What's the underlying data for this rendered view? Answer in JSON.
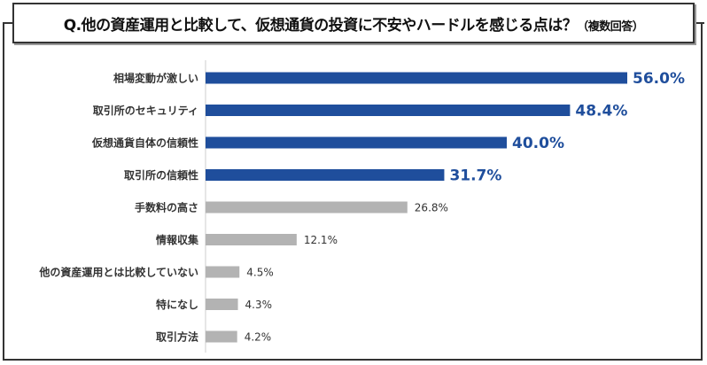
{
  "chart_data": {
    "type": "bar",
    "orientation": "horizontal",
    "title": "Q.他の資産運用と比較して、仮想通貨の投資に不安やハードルを感じる点は？",
    "title_note": "（複数回答）",
    "categories": [
      "相場変動が激しい",
      "取引所のセキュリティ",
      "仮想通貨自体の信頼性",
      "取引所の信頼性",
      "手数料の高さ",
      "情報収集",
      "他の資産運用とは比較していない",
      "特になし",
      "取引方法"
    ],
    "values": [
      56.0,
      48.4,
      40.0,
      31.7,
      26.8,
      12.1,
      4.5,
      4.3,
      4.2
    ],
    "labels": [
      "56.0%",
      "48.4%",
      "40.0%",
      "31.7%",
      "26.8%",
      "12.1%",
      "4.5%",
      "4.3%",
      "4.2%"
    ],
    "highlight_count": 4,
    "colors": {
      "highlight": "#1f4e9c",
      "normal": "#b3b3b3",
      "highlight_label": "#1f4e9c",
      "normal_label": "#333333"
    },
    "xlim": [
      0,
      56
    ],
    "grid": false,
    "legend": "none"
  }
}
